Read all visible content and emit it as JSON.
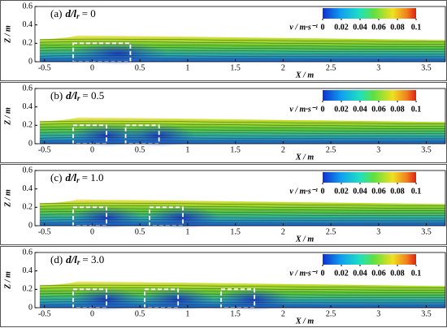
{
  "chart_data": [
    {
      "type": "contour",
      "panel": "(a)",
      "title": "d/l",
      "title_sub": "r",
      "title_value": "= 0",
      "x_label": "X / m",
      "y_label": "Z / m",
      "colorbar_label": "v / m·s⁻¹",
      "xlim": [
        -0.6,
        3.7
      ],
      "xticks": [
        -0.5,
        0,
        0.5,
        1,
        1.5,
        2,
        2.5,
        3,
        3.5
      ],
      "ylim": [
        0,
        0.6
      ],
      "yticks": [
        0,
        0.2,
        0.4,
        0.6
      ],
      "colorbar_lim": [
        0,
        0.1
      ],
      "colorbar_ticks": [
        0,
        0.02,
        0.04,
        0.06,
        0.08,
        0.1
      ]
    },
    {
      "type": "contour",
      "panel": "(b)",
      "title": "d/l",
      "title_sub": "r",
      "title_value": "= 0.5",
      "x_label": "X / m",
      "y_label": "Z / m",
      "colorbar_label": "v / m·s⁻¹",
      "xlim": [
        -0.6,
        3.7
      ],
      "xticks": [
        -0.5,
        0,
        0.5,
        1,
        1.5,
        2,
        2.5,
        3,
        3.5
      ],
      "ylim": [
        0,
        0.6
      ],
      "yticks": [
        0,
        0.2,
        0.4,
        0.6
      ],
      "colorbar_lim": [
        0,
        0.1
      ],
      "colorbar_ticks": [
        0,
        0.02,
        0.04,
        0.06,
        0.08,
        0.1
      ]
    },
    {
      "type": "contour",
      "panel": "(c)",
      "title": "d/l",
      "title_sub": "r",
      "title_value": "= 1.0",
      "x_label": "X / m",
      "y_label": "Z / m",
      "colorbar_label": "v / m·s⁻¹",
      "xlim": [
        -0.6,
        3.7
      ],
      "xticks": [
        -0.5,
        0,
        0.5,
        1,
        1.5,
        2,
        2.5,
        3,
        3.5
      ],
      "ylim": [
        0,
        0.6
      ],
      "yticks": [
        0,
        0.2,
        0.4,
        0.6
      ],
      "colorbar_lim": [
        0,
        0.1
      ],
      "colorbar_ticks": [
        0,
        0.02,
        0.04,
        0.06,
        0.08,
        0.1
      ]
    },
    {
      "type": "contour",
      "panel": "(d)",
      "title": "d/l",
      "title_sub": "r",
      "title_value": "= 3.0",
      "x_label": "X / m",
      "y_label": "Z / m",
      "colorbar_label": "v / m·s⁻¹",
      "xlim": [
        -0.6,
        3.7
      ],
      "xticks": [
        -0.5,
        0,
        0.5,
        1,
        1.5,
        2,
        2.5,
        3,
        3.5
      ],
      "ylim": [
        0,
        0.6
      ],
      "yticks": [
        0,
        0.2,
        0.4,
        0.6
      ],
      "colorbar_lim": [
        0,
        0.1
      ],
      "colorbar_ticks": [
        0,
        0.02,
        0.04,
        0.06,
        0.08,
        0.1
      ]
    }
  ]
}
